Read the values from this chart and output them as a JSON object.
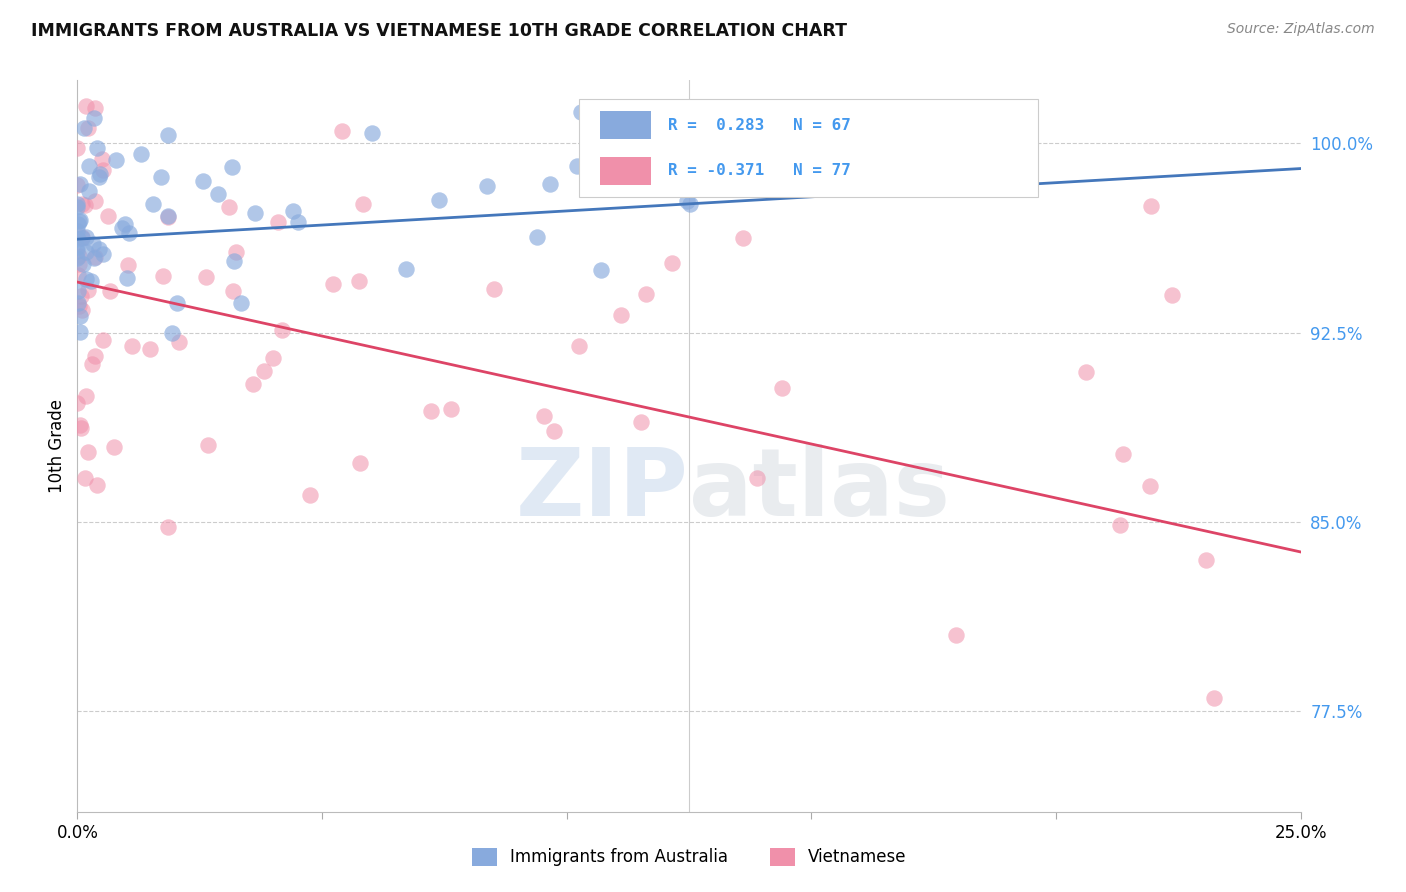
{
  "title": "IMMIGRANTS FROM AUSTRALIA VS VIETNAMESE 10TH GRADE CORRELATION CHART",
  "source": "Source: ZipAtlas.com",
  "ylabel": "10th Grade",
  "y_ticks": [
    77.5,
    85.0,
    92.5,
    100.0
  ],
  "y_tick_labels": [
    "77.5%",
    "85.0%",
    "92.5%",
    "100.0%"
  ],
  "xmin": 0.0,
  "xmax": 25.0,
  "ymin": 73.5,
  "ymax": 102.5,
  "blue_R": 0.283,
  "blue_N": 67,
  "pink_R": -0.371,
  "pink_N": 77,
  "blue_color": "#88AADD",
  "pink_color": "#F090AA",
  "blue_line_color": "#4477BB",
  "pink_line_color": "#DD4466",
  "legend_label_blue": "Immigrants from Australia",
  "legend_label_pink": "Vietnamese",
  "grid_color": "#CCCCCC",
  "axis_label_color": "#4499EE",
  "blue_line_x0": 0.0,
  "blue_line_y0": 96.2,
  "blue_line_x1": 25.0,
  "blue_line_y1": 99.0,
  "pink_line_x0": 0.0,
  "pink_line_y0": 94.5,
  "pink_line_x1": 25.0,
  "pink_line_y1": 83.8
}
